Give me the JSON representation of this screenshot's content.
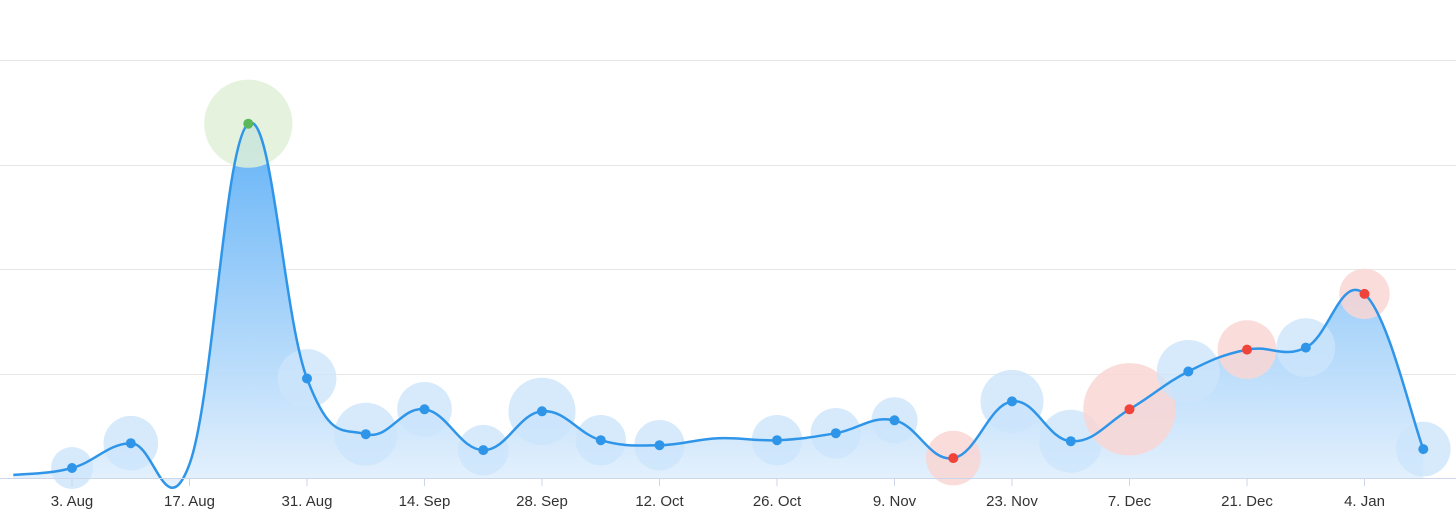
{
  "chart_data": {
    "type": "area",
    "x_labels": [
      "3. Aug",
      "17. Aug",
      "31. Aug",
      "14. Sep",
      "28. Sep",
      "12. Oct",
      "26. Oct",
      "9. Nov",
      "23. Nov",
      "7. Dec",
      "21. Dec",
      "4. Jan"
    ],
    "ylim": [
      0,
      4.2
    ],
    "grid": true,
    "points": [
      {
        "x": "2020-07-27",
        "y": 0.03
      },
      {
        "x": "2020-08-03",
        "y": 0.1,
        "r": 1
      },
      {
        "x": "2020-08-10",
        "y": 0.35,
        "r": 1.3
      },
      {
        "x": "2020-08-17",
        "y": 0.14
      },
      {
        "x": "2020-08-24",
        "y": 3.56,
        "r": 2.1,
        "status": "high"
      },
      {
        "x": "2020-08-31",
        "y": 1.0,
        "r": 1.4
      },
      {
        "x": "2020-09-07",
        "y": 0.44,
        "r": 1.5
      },
      {
        "x": "2020-09-14",
        "y": 0.69,
        "r": 1.3
      },
      {
        "x": "2020-09-21",
        "y": 0.28,
        "r": 1.2
      },
      {
        "x": "2020-09-28",
        "y": 0.67,
        "r": 1.6
      },
      {
        "x": "2020-10-05",
        "y": 0.38,
        "r": 1.2
      },
      {
        "x": "2020-10-12",
        "y": 0.33,
        "r": 1.2
      },
      {
        "x": "2020-10-19",
        "y": 0.4
      },
      {
        "x": "2020-10-26",
        "y": 0.38,
        "r": 1.2
      },
      {
        "x": "2020-11-02",
        "y": 0.45,
        "r": 1.2
      },
      {
        "x": "2020-11-09",
        "y": 0.58,
        "r": 1.1
      },
      {
        "x": "2020-11-16",
        "y": 0.2,
        "r": 1.3,
        "status": "low"
      },
      {
        "x": "2020-11-23",
        "y": 0.77,
        "r": 1.5
      },
      {
        "x": "2020-11-30",
        "y": 0.37,
        "r": 1.5
      },
      {
        "x": "2020-12-07",
        "y": 0.69,
        "r": 2.2,
        "status": "low"
      },
      {
        "x": "2020-12-14",
        "y": 1.07,
        "r": 1.5
      },
      {
        "x": "2020-12-21",
        "y": 1.29,
        "r": 1.4,
        "status": "low"
      },
      {
        "x": "2020-12-28",
        "y": 1.31,
        "r": 1.4
      },
      {
        "x": "2021-01-04",
        "y": 1.85,
        "r": 1.2,
        "status": "low"
      },
      {
        "x": "2021-01-11",
        "y": 0.29,
        "r": 1.3
      }
    ],
    "colors": {
      "line": "#2f95e8",
      "point": "#2f95e8",
      "point_halo": "#cce5fb",
      "high": "#5cb85c",
      "high_halo": "#dff0d8",
      "low": "#f0433a",
      "low_halo": "#f9d6d3",
      "area_top": "#5aaef6",
      "area_bottom": "#e5f1fd"
    }
  }
}
